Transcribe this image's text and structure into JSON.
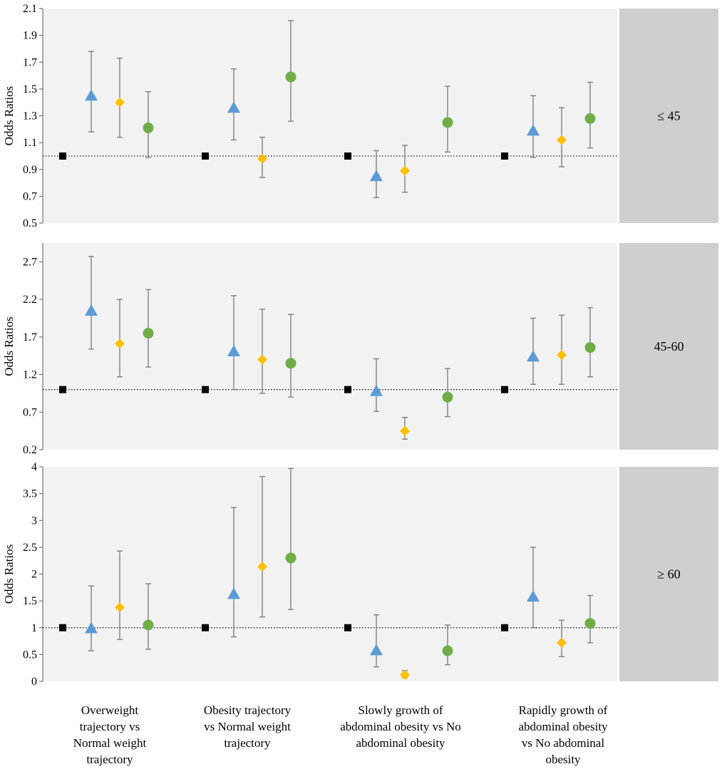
{
  "chart_data": {
    "type": "scatter",
    "categories": [
      "Overweight trajectory vs Normal weight trajectory",
      "Obesity trajectory vs Normal weight trajectory",
      "Slowly growth of abdominal obesity vs No abdominal obesity",
      "Rapidly growth of abdominal obesity vs No abdominal obesity"
    ],
    "ylabel": "Odds Ratios",
    "reference_line": 1,
    "series_colors": {
      "reference": "#000000",
      "triangle": "#5B9BD5",
      "diamond": "#FFC000",
      "circle": "#70AD47"
    },
    "panels": [
      {
        "label": "≤  45",
        "ylim": [
          0.5,
          2.1
        ],
        "ticks": [
          "0.5",
          "0.7",
          "0.9",
          "1.1",
          "1.3",
          "1.5",
          "1.7",
          "1.9",
          "2.1"
        ],
        "groups": [
          {
            "reference": 1,
            "triangle": {
              "or": 1.45,
              "lo": 1.18,
              "hi": 1.78
            },
            "diamond": {
              "or": 1.4,
              "lo": 1.14,
              "hi": 1.73
            },
            "circle": {
              "or": 1.21,
              "lo": 0.99,
              "hi": 1.48
            }
          },
          {
            "reference": 1,
            "triangle": {
              "or": 1.36,
              "lo": 1.12,
              "hi": 1.65
            },
            "diamond": {
              "or": 0.98,
              "lo": 0.84,
              "hi": 1.14
            },
            "circle": {
              "or": 1.59,
              "lo": 1.26,
              "hi": 2.01
            }
          },
          {
            "reference": 1,
            "triangle": {
              "or": 0.85,
              "lo": 0.69,
              "hi": 1.04
            },
            "diamond": {
              "or": 0.89,
              "lo": 0.73,
              "hi": 1.08
            },
            "circle": {
              "or": 1.25,
              "lo": 1.03,
              "hi": 1.52
            }
          },
          {
            "reference": 1,
            "triangle": {
              "or": 1.19,
              "lo": 0.99,
              "hi": 1.45
            },
            "diamond": {
              "or": 1.12,
              "lo": 0.92,
              "hi": 1.36
            },
            "circle": {
              "or": 1.28,
              "lo": 1.06,
              "hi": 1.55
            }
          }
        ]
      },
      {
        "label": "45-60",
        "ylim": [
          0.2,
          2.95
        ],
        "ticks": [
          "0.2",
          "0.7",
          "1.2",
          "1.7",
          "2.2",
          "2.7"
        ],
        "groups": [
          {
            "reference": 1,
            "triangle": {
              "or": 2.05,
              "lo": 1.54,
              "hi": 2.77
            },
            "diamond": {
              "or": 1.61,
              "lo": 1.17,
              "hi": 2.2
            },
            "circle": {
              "or": 1.75,
              "lo": 1.3,
              "hi": 2.33
            }
          },
          {
            "reference": 1,
            "triangle": {
              "or": 1.51,
              "lo": 1.0,
              "hi": 2.25
            },
            "diamond": {
              "or": 1.4,
              "lo": 0.95,
              "hi": 2.07
            },
            "circle": {
              "or": 1.35,
              "lo": 0.9,
              "hi": 2.0
            }
          },
          {
            "reference": 1,
            "triangle": {
              "or": 0.98,
              "lo": 0.71,
              "hi": 1.41
            },
            "diamond": {
              "or": 0.45,
              "lo": 0.34,
              "hi": 0.63
            },
            "circle": {
              "or": 0.9,
              "lo": 0.64,
              "hi": 1.28
            }
          },
          {
            "reference": 1,
            "triangle": {
              "or": 1.44,
              "lo": 1.07,
              "hi": 1.95
            },
            "diamond": {
              "or": 1.46,
              "lo": 1.07,
              "hi": 1.99
            },
            "circle": {
              "or": 1.56,
              "lo": 1.17,
              "hi": 2.09
            }
          }
        ]
      },
      {
        "label": "≥ 60",
        "ylim": [
          0,
          4
        ],
        "ticks": [
          "0",
          "0.5",
          "1",
          "1.5",
          "2",
          "2.5",
          "3",
          "3.5",
          "4"
        ],
        "groups": [
          {
            "reference": 1,
            "triangle": {
              "or": 0.99,
              "lo": 0.57,
              "hi": 1.78
            },
            "diamond": {
              "or": 1.38,
              "lo": 0.78,
              "hi": 2.43
            },
            "circle": {
              "or": 1.05,
              "lo": 0.6,
              "hi": 1.82
            }
          },
          {
            "reference": 1,
            "triangle": {
              "or": 1.63,
              "lo": 0.83,
              "hi": 3.24
            },
            "diamond": {
              "or": 2.14,
              "lo": 1.2,
              "hi": 3.82
            },
            "circle": {
              "or": 2.3,
              "lo": 1.34,
              "hi": 3.97
            }
          },
          {
            "reference": 1,
            "triangle": {
              "or": 0.58,
              "lo": 0.27,
              "hi": 1.24
            },
            "diamond": {
              "or": 0.12,
              "lo": 0.07,
              "hi": 0.2
            },
            "circle": {
              "or": 0.57,
              "lo": 0.31,
              "hi": 1.05
            }
          },
          {
            "reference": 1,
            "triangle": {
              "or": 1.58,
              "lo": 1.0,
              "hi": 2.5
            },
            "diamond": {
              "or": 0.72,
              "lo": 0.46,
              "hi": 1.14
            },
            "circle": {
              "or": 1.08,
              "lo": 0.72,
              "hi": 1.6
            }
          }
        ]
      }
    ]
  },
  "x_labels": [
    [
      "Overweight",
      "trajectory vs",
      "Normal weight",
      "trajectory"
    ],
    [
      "Obesity trajectory",
      "vs Normal weight",
      "trajectory"
    ],
    [
      "Slowly growth of",
      "abdominal obesity vs No",
      "abdominal obesity"
    ],
    [
      "Rapidly growth of",
      "abdominal obesity",
      "vs No abdominal",
      "obesity"
    ]
  ]
}
